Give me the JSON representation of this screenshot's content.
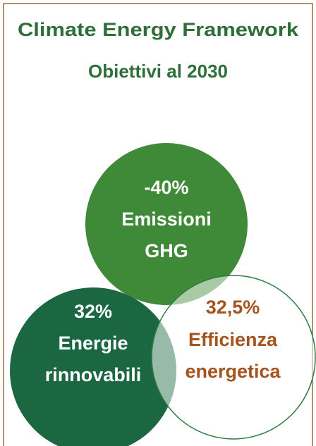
{
  "header": {
    "title": "Climate Energy Framework",
    "subtitle": "Obiettivi al 2030"
  },
  "circles": [
    {
      "lines": [
        "-40%",
        "Emissioni",
        "GHG"
      ]
    },
    {
      "lines": [
        "32%",
        "Energie",
        "rinnovabili"
      ]
    },
    {
      "lines": [
        "32,5%",
        "Efficienza",
        "energetica"
      ]
    }
  ]
}
